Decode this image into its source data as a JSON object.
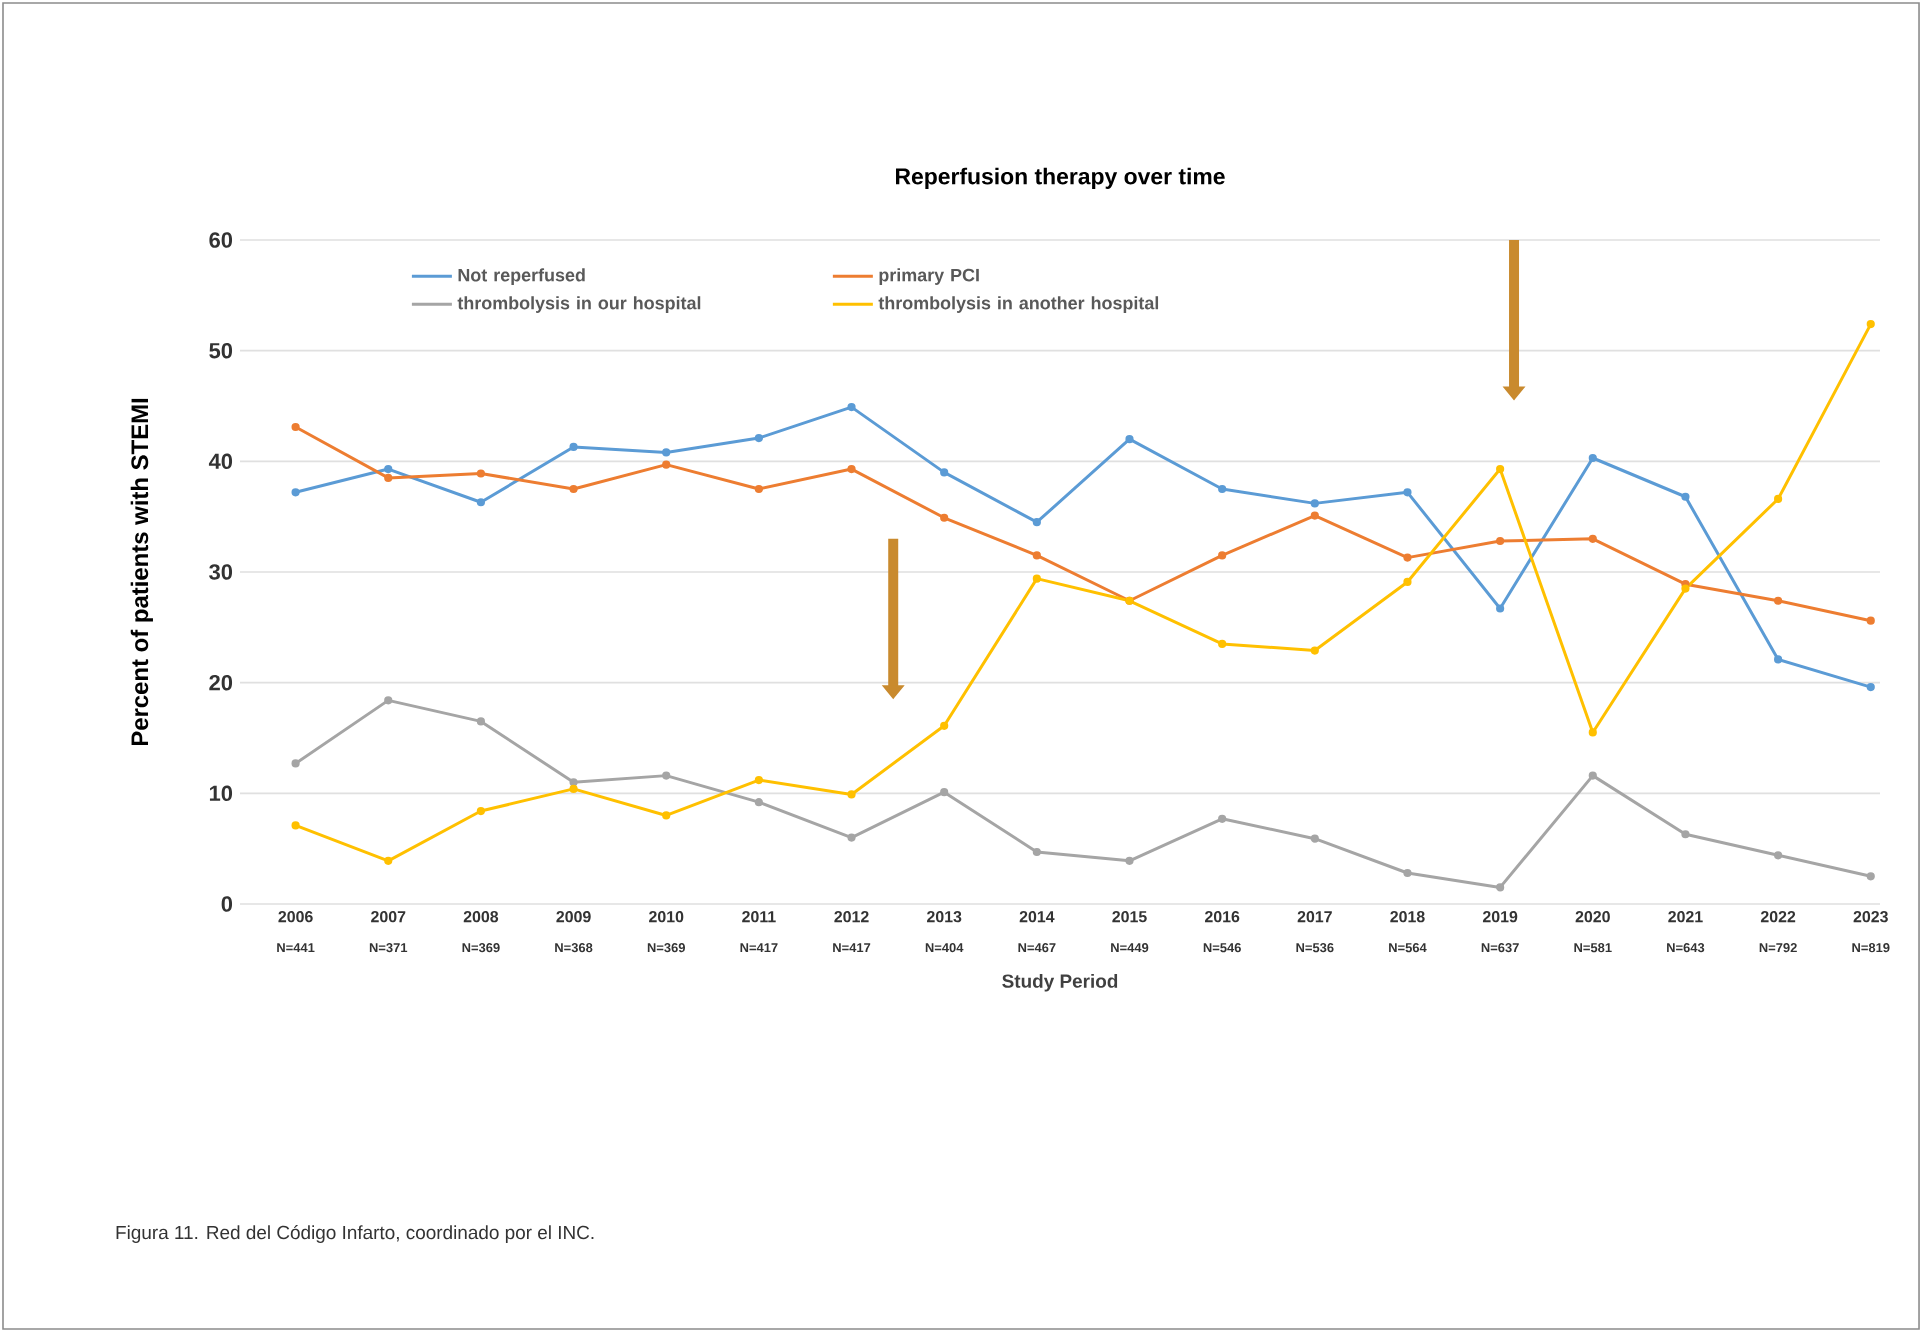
{
  "chart_data": {
    "type": "line",
    "title": "Reperfusion therapy over time",
    "xlabel": "Study Period",
    "ylabel": "Percent of patients with STEMI",
    "categories": [
      "2006",
      "2007",
      "2008",
      "2009",
      "2010",
      "2011",
      "2012",
      "2013",
      "2014",
      "2015",
      "2016",
      "2017",
      "2018",
      "2019",
      "2020",
      "2021",
      "2022",
      "2023"
    ],
    "series": [
      {
        "name": "Not reperfused",
        "color": "#5b9bd5",
        "values": [
          37.2,
          39.3,
          36.3,
          41.3,
          40.8,
          42.1,
          44.9,
          39.0,
          34.5,
          42.0,
          37.5,
          36.2,
          37.2,
          26.7,
          40.3,
          36.8,
          22.1,
          19.6
        ]
      },
      {
        "name": "primary PCI",
        "color": "#ed7d31",
        "values": [
          43.1,
          38.5,
          38.9,
          37.5,
          39.7,
          37.5,
          39.3,
          34.9,
          31.5,
          27.4,
          31.5,
          35.1,
          31.3,
          32.8,
          33.0,
          28.9,
          27.4,
          25.6
        ]
      },
      {
        "name": "thrombolysis in our hospital",
        "color": "#a5a5a5",
        "values": [
          12.7,
          18.4,
          16.5,
          11.0,
          11.6,
          9.2,
          6.0,
          10.1,
          4.7,
          3.9,
          7.7,
          5.9,
          2.8,
          1.5,
          11.6,
          6.3,
          4.4,
          2.5
        ]
      },
      {
        "name": "thrombolysis in another hospital",
        "color": "#ffc000",
        "values": [
          7.1,
          3.9,
          8.4,
          10.4,
          8.0,
          11.2,
          9.9,
          16.1,
          29.4,
          27.4,
          23.5,
          22.9,
          29.1,
          39.3,
          15.5,
          28.5,
          36.6,
          52.4
        ]
      }
    ],
    "ylim": [
      0,
      60
    ],
    "yticks": [
      0,
      10,
      20,
      30,
      40,
      50,
      60
    ],
    "grid": "y",
    "legend": "top",
    "marker": "circle",
    "line_style": "solid",
    "annotations": [
      "N=441",
      "N=371",
      "N=369",
      "N=368",
      "N=369",
      "N=417",
      "N=417",
      "N=404",
      "N=467",
      "N=449",
      "N=546",
      "N=536",
      "N=564",
      "N=637",
      "N=581",
      "N=643",
      "N=792",
      "N=819",
      "Figura 11. Red del Código Infarto, coordinado por el INC."
    ]
  }
}
